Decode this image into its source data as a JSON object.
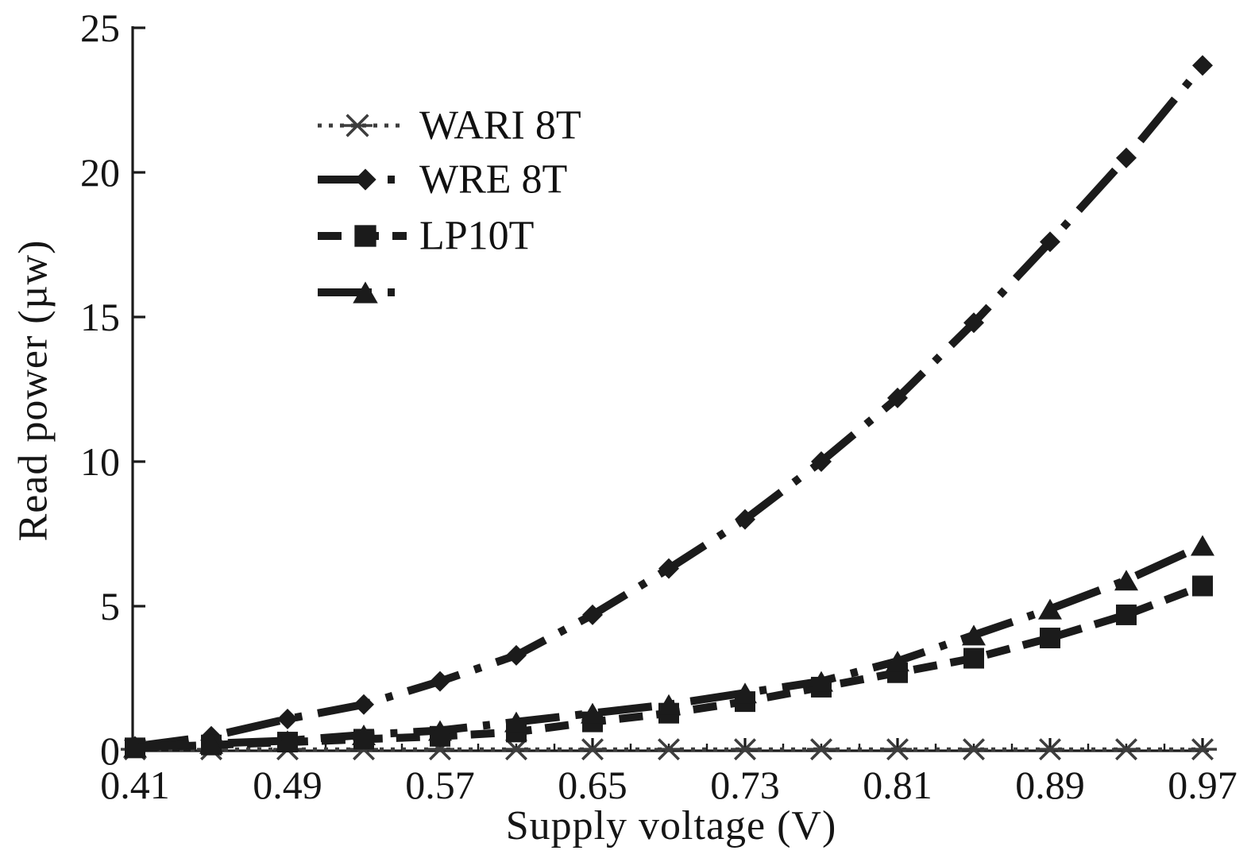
{
  "figure": {
    "background": "#ffffff",
    "ink_color": "#1b1b1b",
    "asterisk_color": "#3d3d3d"
  },
  "chart_data": {
    "type": "line",
    "title": "",
    "xlabel": "Supply voltage (V)",
    "ylabel": "Read power (µw)",
    "xlim": [
      0.41,
      0.97
    ],
    "ylim": [
      0,
      25
    ],
    "grid": false,
    "legend_position": "upper-left-inside",
    "x_tick_labels": [
      "0.41",
      "0.49",
      "0.57",
      "0.65",
      "0.73",
      "0.81",
      "0.89",
      "0.97"
    ],
    "x_major_ticks": [
      0.41,
      0.49,
      0.57,
      0.65,
      0.73,
      0.81,
      0.89,
      0.97
    ],
    "y_ticks": [
      0,
      5,
      10,
      15,
      20,
      25
    ],
    "y_tick_labels": [
      "0",
      "5",
      "10",
      "15",
      "20",
      "25"
    ],
    "x": [
      0.41,
      0.45,
      0.49,
      0.53,
      0.57,
      0.61,
      0.65,
      0.69,
      0.73,
      0.77,
      0.81,
      0.85,
      0.89,
      0.93,
      0.97
    ],
    "series": [
      {
        "key": "wari-8t",
        "name": "WARI 8T",
        "marker": "asterisk",
        "linestyle": "dotted",
        "values": [
          0.05,
          0.05,
          0.05,
          0.05,
          0.05,
          0.05,
          0.05,
          0.05,
          0.05,
          0.05,
          0.05,
          0.05,
          0.05,
          0.05,
          0.05
        ]
      },
      {
        "key": "wre-8t",
        "name": "WRE 8T",
        "marker": "diamond",
        "linestyle": "dashdot",
        "values": [
          0.15,
          0.5,
          1.1,
          1.6,
          2.4,
          3.3,
          4.7,
          6.3,
          8.0,
          10.0,
          12.2,
          14.8,
          17.6,
          20.5,
          23.7
        ]
      },
      {
        "key": "lp10t",
        "name": "LP10T",
        "marker": "square",
        "linestyle": "dashed",
        "values": [
          0.1,
          0.2,
          0.3,
          0.4,
          0.5,
          0.65,
          1.0,
          1.3,
          1.7,
          2.2,
          2.7,
          3.2,
          3.9,
          4.7,
          5.7
        ]
      },
      {
        "key": "series-4",
        "name": "",
        "marker": "triangle",
        "linestyle": "dashdot",
        "values": [
          0.12,
          0.25,
          0.35,
          0.55,
          0.7,
          1.0,
          1.3,
          1.6,
          2.0,
          2.4,
          3.1,
          4.0,
          4.9,
          5.9,
          7.1
        ]
      }
    ]
  }
}
